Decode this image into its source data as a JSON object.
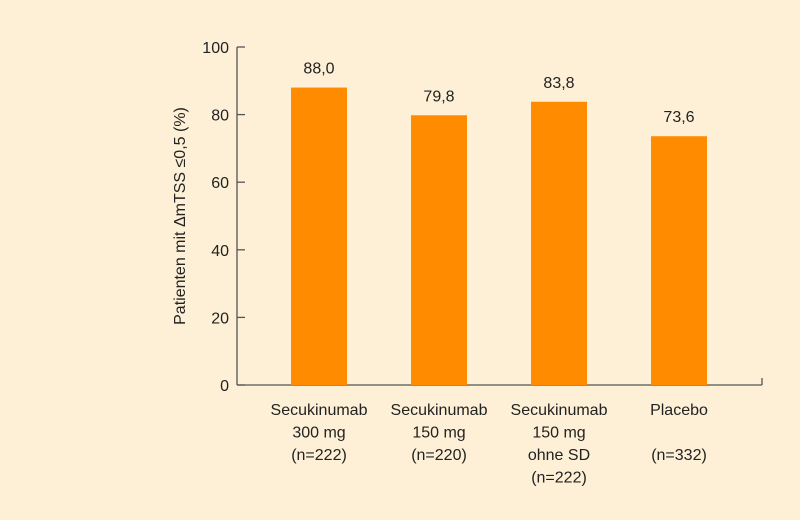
{
  "chart_data": {
    "type": "bar",
    "title": "",
    "xlabel": "",
    "ylabel": "Patienten mit ΔmTSS ≤0,5 (%)",
    "ylim": [
      0,
      100
    ],
    "yticks": [
      "0",
      "20",
      "40",
      "60",
      "80",
      "100"
    ],
    "grid": false,
    "categories": [
      [
        "Secukinumab",
        "300 mg",
        "(n=222)"
      ],
      [
        "Secukinumab",
        "150 mg",
        "(n=220)"
      ],
      [
        "Secukinumab",
        "150 mg",
        "ohne SD",
        "(n=222)"
      ],
      [
        "Placebo",
        "",
        "(n=332)"
      ]
    ],
    "values": [
      88.0,
      79.8,
      83.8,
      73.6
    ],
    "value_labels": [
      "88,0",
      "79,8",
      "83,8",
      "73,6"
    ],
    "colors": {
      "bar": "#ff8c00",
      "axis": "#555555",
      "background": "#fdf0d6"
    }
  }
}
